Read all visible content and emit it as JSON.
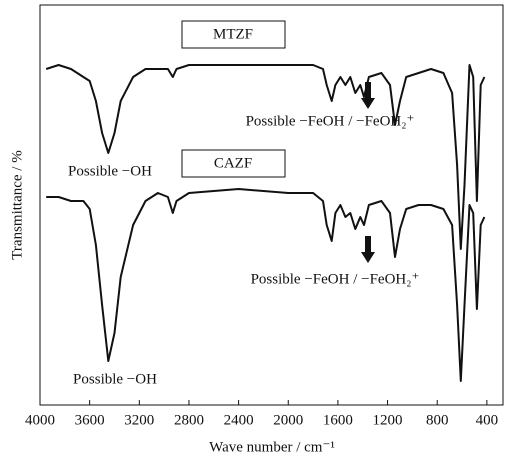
{
  "chart_data": {
    "type": "line",
    "xlabel": "Wave number / cm⁻¹",
    "ylabel": "Transmittance / %",
    "xlim": [
      4000,
      270
    ],
    "ylim": [
      0,
      100
    ],
    "xticks": [
      4000,
      3600,
      3200,
      2800,
      2400,
      2000,
      1600,
      1200,
      800,
      400
    ],
    "x": [
      3950,
      3850,
      3750,
      3650,
      3600,
      3550,
      3500,
      3450,
      3400,
      3350,
      3250,
      3150,
      3050,
      2970,
      2930,
      2900,
      2800,
      2400,
      2000,
      1800,
      1720,
      1690,
      1650,
      1620,
      1580,
      1540,
      1500,
      1460,
      1420,
      1390,
      1350,
      1250,
      1180,
      1140,
      1100,
      1050,
      950,
      850,
      750,
      680,
      640,
      610,
      580,
      540,
      510,
      480,
      450,
      420
    ],
    "series": [
      {
        "name": "MTZF",
        "color": "#111111",
        "values": [
          84,
          85,
          84,
          82,
          81,
          76,
          68,
          63,
          68,
          76,
          82,
          84,
          84,
          84,
          82,
          84,
          85,
          85,
          85,
          85,
          84,
          80,
          76,
          80,
          82,
          80,
          82,
          78,
          80,
          77,
          82,
          83,
          80,
          70,
          76,
          82,
          83,
          84,
          83,
          78,
          60,
          39,
          55,
          85,
          82,
          51,
          80,
          82
        ]
      },
      {
        "name": "CAZF",
        "color": "#111111",
        "values": [
          52,
          52,
          51,
          51,
          49,
          40,
          25,
          11,
          18,
          32,
          45,
          51,
          53,
          52,
          48,
          51,
          53,
          54,
          53,
          53,
          51,
          45,
          41,
          48,
          50,
          47,
          48,
          44,
          47,
          45,
          50,
          51,
          48,
          37,
          44,
          49,
          50,
          50,
          49,
          45,
          25,
          6,
          25,
          50,
          48,
          24,
          45,
          47
        ]
      }
    ],
    "annotations": [
      "Possible −OH",
      "Possible −FeOH / −FeOH₂⁺",
      "Possible −OH",
      "Possible −FeOH / −FeOH₂⁺"
    ]
  }
}
